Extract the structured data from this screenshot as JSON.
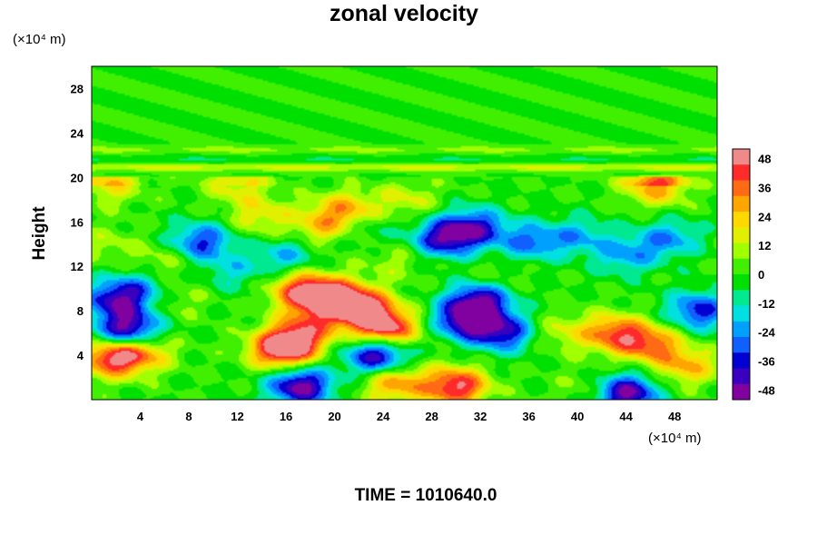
{
  "chart_data": {
    "type": "heatmap",
    "title": "zonal velocity",
    "xlabel": "",
    "ylabel": "Height",
    "x_unit": "(×10⁴ m)",
    "y_unit": "(×10⁴ m)",
    "xlim": [
      0,
      51.5
    ],
    "ylim": [
      0,
      30
    ],
    "x_ticks": [
      4,
      8,
      12,
      16,
      20,
      24,
      28,
      32,
      36,
      40,
      44,
      48
    ],
    "y_ticks": [
      4,
      8,
      12,
      16,
      20,
      24,
      28
    ],
    "colorbar": {
      "ticks": [
        48,
        36,
        24,
        12,
        0,
        -12,
        -24,
        -36,
        -48
      ],
      "range": [
        -52,
        52
      ],
      "colors_high_to_low": [
        "#f08a8a",
        "#ff2a2a",
        "#ff6a14",
        "#ffa500",
        "#ffd800",
        "#e0f000",
        "#a0ff00",
        "#40f000",
        "#00e000",
        "#00e890",
        "#00e0e0",
        "#00a0ff",
        "#1060ff",
        "#0000d0",
        "#3a00c0",
        "#8000a0"
      ]
    },
    "base_value": 0,
    "features": [
      {
        "x": 3,
        "y": 6.3,
        "value": -50
      },
      {
        "x": 2,
        "y": 9,
        "value": -38
      },
      {
        "x": 1.6,
        "y": 3.7,
        "value": 42
      },
      {
        "x": 4,
        "y": 4.3,
        "value": 30
      },
      {
        "x": 4,
        "y": 10,
        "value": -18
      },
      {
        "x": 7,
        "y": 9,
        "value": 10
      },
      {
        "x": 15.6,
        "y": 4.5,
        "value": 48
      },
      {
        "x": 17,
        "y": 5.5,
        "value": 32
      },
      {
        "x": 17.5,
        "y": 9.8,
        "value": 46
      },
      {
        "x": 20.5,
        "y": 9.2,
        "value": 38
      },
      {
        "x": 22.5,
        "y": 8,
        "value": 44
      },
      {
        "x": 24.3,
        "y": 6.3,
        "value": 46
      },
      {
        "x": 18.5,
        "y": 7.5,
        "value": 22
      },
      {
        "x": 23.5,
        "y": 4,
        "value": -48
      },
      {
        "x": 17.2,
        "y": 1.2,
        "value": -50
      },
      {
        "x": 31,
        "y": 7.2,
        "value": -50
      },
      {
        "x": 32,
        "y": 9,
        "value": -40
      },
      {
        "x": 34,
        "y": 6,
        "value": -36
      },
      {
        "x": 30,
        "y": 1.2,
        "value": 48
      },
      {
        "x": 25,
        "y": 1.5,
        "value": 32
      },
      {
        "x": 41,
        "y": 1,
        "value": 10
      },
      {
        "x": 43,
        "y": 6,
        "value": 36
      },
      {
        "x": 46,
        "y": 5,
        "value": 34
      },
      {
        "x": 44,
        "y": 0.6,
        "value": -50
      },
      {
        "x": 50,
        "y": 8,
        "value": -36
      },
      {
        "x": 49,
        "y": 3,
        "value": 26
      },
      {
        "x": 38.5,
        "y": 6,
        "value": 14
      },
      {
        "x": 9,
        "y": 14.2,
        "value": -34
      },
      {
        "x": 11.5,
        "y": 11.5,
        "value": -14
      },
      {
        "x": 16,
        "y": 13,
        "value": -20
      },
      {
        "x": 21,
        "y": 17,
        "value": 30
      },
      {
        "x": 19,
        "y": 15.5,
        "value": 22
      },
      {
        "x": 14,
        "y": 16.5,
        "value": 18
      },
      {
        "x": 22,
        "y": 15.5,
        "value": -14
      },
      {
        "x": 31.5,
        "y": 15.5,
        "value": -36
      },
      {
        "x": 29,
        "y": 14.5,
        "value": -40
      },
      {
        "x": 36,
        "y": 14.2,
        "value": -26
      },
      {
        "x": 40,
        "y": 14.7,
        "value": -20
      },
      {
        "x": 44,
        "y": 13,
        "value": -22
      },
      {
        "x": 47.5,
        "y": 14.5,
        "value": -24
      },
      {
        "x": 33,
        "y": 11,
        "value": 8
      },
      {
        "x": 46.5,
        "y": 19.2,
        "value": 30
      },
      {
        "x": 1.5,
        "y": 19.2,
        "value": 18
      },
      {
        "x": 12,
        "y": 19.2,
        "value": 16
      },
      {
        "x": 26,
        "y": 18,
        "value": 14
      },
      {
        "x": 1.2,
        "y": 14,
        "value": 10
      },
      {
        "x": 25,
        "y": 12.5,
        "value": 10
      },
      {
        "x": 6,
        "y": 12.5,
        "value": 12
      }
    ],
    "bands": [
      {
        "y": 20.9,
        "value": 14
      },
      {
        "y": 22.5,
        "value": 8
      },
      {
        "y": 21.6,
        "value": -6
      }
    ]
  },
  "footer": {
    "time_label": "TIME = 1010640.0"
  }
}
